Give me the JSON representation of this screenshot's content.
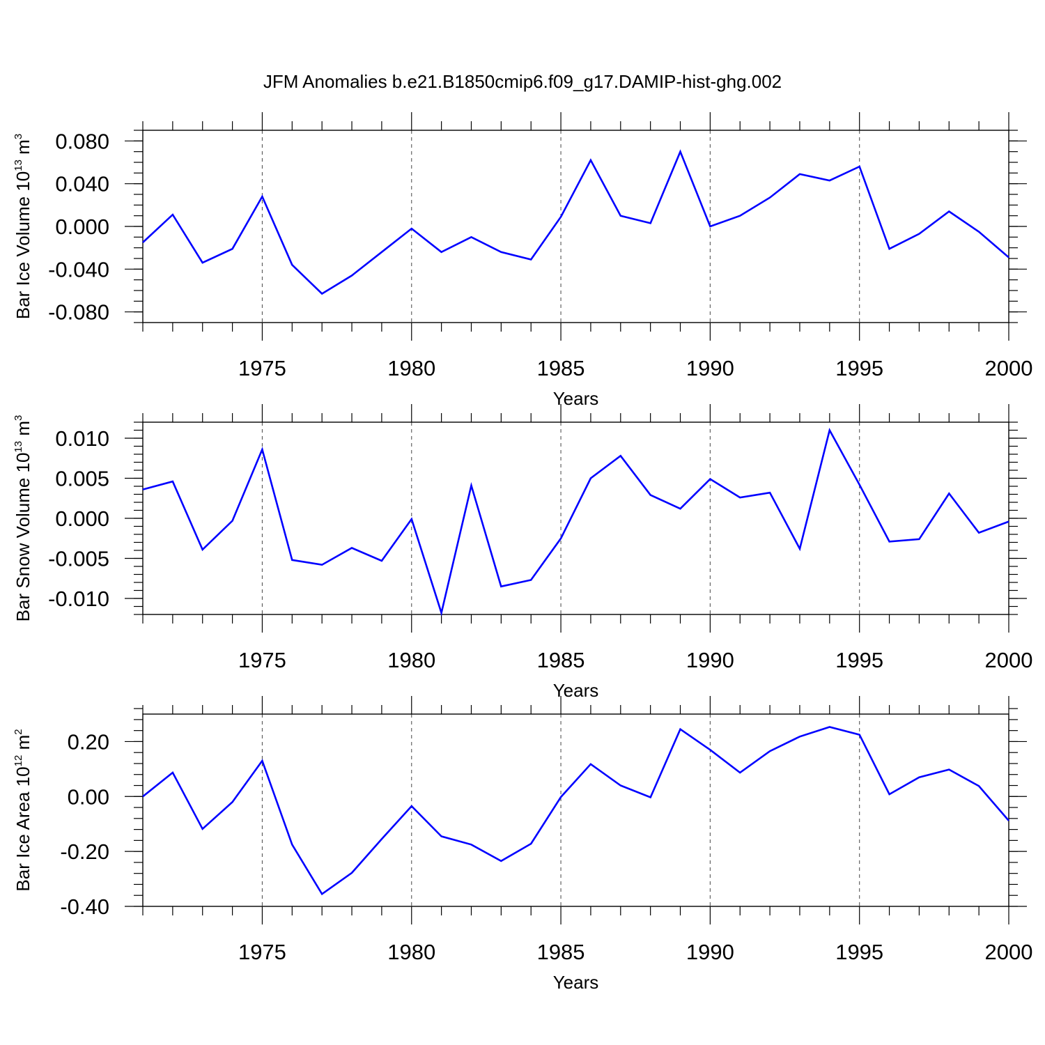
{
  "title": "JFM Anomalies b.e21.B1850cmip6.f09_g17.DAMIP-hist-ghg.002",
  "colors": {
    "line": "#0000ff",
    "axes": "#000000",
    "grid": "#555555"
  },
  "chart_data": [
    {
      "type": "line",
      "title": "JFM Anomalies b.e21.B1850cmip6.f09_g17.DAMIP-hist-ghg.002",
      "xlabel": "Years",
      "ylabel": {
        "prefix": "Bar Ice Volume 10",
        "exp": "13",
        "unit": " m",
        "unit_exp": "3"
      },
      "xlim": [
        1971,
        2000
      ],
      "ylim": [
        -0.09,
        0.09
      ],
      "xticks": [
        1975,
        1980,
        1985,
        1990,
        1995,
        2000
      ],
      "yticks": [
        -0.08,
        -0.04,
        0.0,
        0.04,
        0.08
      ],
      "ytick_labels": [
        "-0.080",
        "-0.040",
        "0.000",
        "0.040",
        "0.080"
      ],
      "ydecimals": 3,
      "yminor_step": 0.01,
      "x": [
        1971,
        1972,
        1973,
        1974,
        1975,
        1976,
        1977,
        1978,
        1979,
        1980,
        1981,
        1982,
        1983,
        1984,
        1985,
        1986,
        1987,
        1988,
        1989,
        1990,
        1991,
        1992,
        1993,
        1994,
        1995,
        1996,
        1997,
        1998,
        1999,
        2000
      ],
      "series": [
        {
          "name": "Bar Ice Volume",
          "values": [
            -0.015,
            0.011,
            -0.034,
            -0.021,
            0.028,
            -0.036,
            -0.063,
            -0.046,
            -0.024,
            -0.002,
            -0.024,
            -0.01,
            -0.024,
            -0.031,
            0.009,
            0.062,
            0.01,
            0.003,
            0.07,
            0.0,
            0.01,
            0.027,
            0.049,
            0.043,
            0.056,
            -0.021,
            -0.007,
            0.014,
            -0.005,
            -0.029
          ]
        }
      ]
    },
    {
      "type": "line",
      "xlabel": "Years",
      "ylabel": {
        "prefix": "Bar Snow Volume 10",
        "exp": "13",
        "unit": " m",
        "unit_exp": "3"
      },
      "xlim": [
        1971,
        2000
      ],
      "ylim": [
        -0.012,
        0.012
      ],
      "xticks": [
        1975,
        1980,
        1985,
        1990,
        1995,
        2000
      ],
      "yticks": [
        -0.01,
        -0.005,
        0.0,
        0.005,
        0.01
      ],
      "ytick_labels": [
        "-0.010",
        "-0.005",
        "0.000",
        "0.005",
        "0.010"
      ],
      "ydecimals": 3,
      "yminor_step": 0.001,
      "x": [
        1971,
        1972,
        1973,
        1974,
        1975,
        1976,
        1977,
        1978,
        1979,
        1980,
        1981,
        1982,
        1983,
        1984,
        1985,
        1986,
        1987,
        1988,
        1989,
        1990,
        1991,
        1992,
        1993,
        1994,
        1995,
        1996,
        1997,
        1998,
        1999,
        2000
      ],
      "series": [
        {
          "name": "Bar Snow Volume",
          "values": [
            0.0036,
            0.0046,
            -0.0039,
            -0.0003,
            0.0086,
            -0.0052,
            -0.0058,
            -0.0037,
            -0.0053,
            -0.0001,
            -0.0118,
            0.0041,
            -0.0085,
            -0.0077,
            -0.0025,
            0.005,
            0.0078,
            0.0029,
            0.0012,
            0.0049,
            0.0026,
            0.0032,
            -0.0038,
            0.011,
            0.0042,
            -0.0029,
            -0.0026,
            0.0031,
            -0.0018,
            -0.0004
          ]
        }
      ]
    },
    {
      "type": "line",
      "xlabel": "Years",
      "ylabel": {
        "prefix": "Bar Ice Area 10",
        "exp": "12",
        "unit": " m",
        "unit_exp": "2"
      },
      "xlim": [
        1971,
        2000
      ],
      "ylim": [
        -0.4,
        0.3
      ],
      "xticks": [
        1975,
        1980,
        1985,
        1990,
        1995,
        2000
      ],
      "yticks": [
        -0.4,
        -0.2,
        0.0,
        0.2
      ],
      "ytick_labels": [
        "-0.40",
        "-0.20",
        "0.00",
        "0.20"
      ],
      "ydecimals": 2,
      "yminor_step": 0.04,
      "x": [
        1971,
        1972,
        1973,
        1974,
        1975,
        1976,
        1977,
        1978,
        1979,
        1980,
        1981,
        1982,
        1983,
        1984,
        1985,
        1986,
        1987,
        1988,
        1989,
        1990,
        1991,
        1992,
        1993,
        1994,
        1995,
        1996,
        1997,
        1998,
        1999,
        2000
      ],
      "series": [
        {
          "name": "Bar Ice Area",
          "values": [
            0.0,
            0.087,
            -0.118,
            -0.02,
            0.13,
            -0.175,
            -0.355,
            -0.278,
            -0.155,
            -0.035,
            -0.145,
            -0.175,
            -0.235,
            -0.172,
            -0.002,
            0.118,
            0.04,
            -0.003,
            0.245,
            0.17,
            0.087,
            0.165,
            0.218,
            0.253,
            0.225,
            0.008,
            0.07,
            0.098,
            0.038,
            -0.088
          ]
        }
      ]
    }
  ]
}
